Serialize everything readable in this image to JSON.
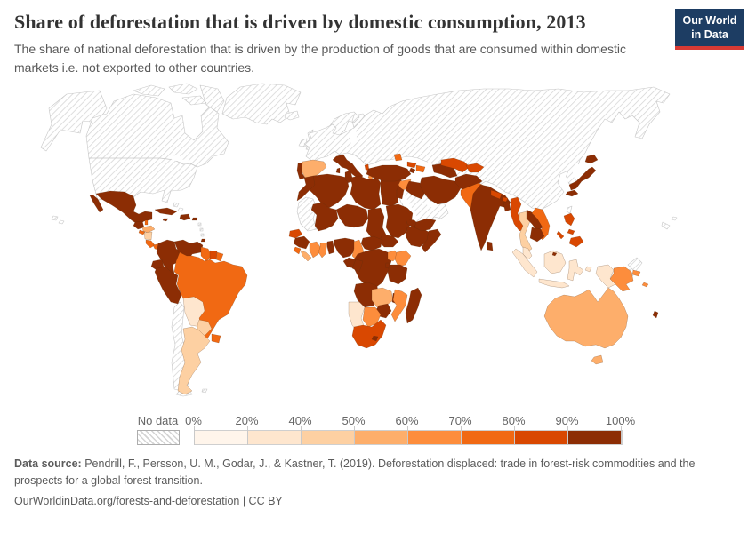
{
  "header": {
    "title": "Share of deforestation that is driven by domestic consumption, 2013",
    "subtitle": "The share of national deforestation that is driven by the production of goods that are consumed within domestic markets i.e. not exported to other countries.",
    "logo": {
      "line1": "Our World",
      "line2": "in Data",
      "bg_color": "#1d3d63",
      "accent_color": "#d73a34"
    }
  },
  "legend": {
    "no_data_label": "No data",
    "tick_labels": [
      "0%",
      "20%",
      "40%",
      "50%",
      "60%",
      "70%",
      "80%",
      "90%",
      "100%"
    ]
  },
  "footer": {
    "source_label": "Data source:",
    "source_text": " Pendrill, F., Persson, U. M., Godar, J., & Kastner, T. (2019). Deforestation displaced: trade in forest-risk commodities and the prospects for a global forest transition.",
    "link_text": "OurWorldinData.org/forests-and-deforestation | CC BY"
  },
  "chart_data": {
    "type": "choropleth_map",
    "title": "Share of deforestation that is driven by domestic consumption, 2013",
    "unit": "%",
    "legend_position": "bottom",
    "no_data_style": "diagonal-hatch",
    "bins": [
      {
        "key": "0-20",
        "color": "#fff5eb"
      },
      {
        "key": "20-40",
        "color": "#fee6ce"
      },
      {
        "key": "40-50",
        "color": "#fdd0a2"
      },
      {
        "key": "50-60",
        "color": "#fdae6b"
      },
      {
        "key": "60-70",
        "color": "#fd8d3c"
      },
      {
        "key": "70-80",
        "color": "#f16913"
      },
      {
        "key": "80-90",
        "color": "#d94801"
      },
      {
        "key": "90-100",
        "color": "#8c2d04"
      }
    ],
    "regions": {
      "alaska": "no-data",
      "canada-usa": "no-data",
      "canadian-arctic": "no-data",
      "greenland": "no-data",
      "iceland": "no-data",
      "united-kingdom": "no-data",
      "ireland": "no-data",
      "scandinavia": "no-data",
      "eurasia": "no-data",
      "taiwan": "no-data",
      "arabian-peninsula": "no-data",
      "mauritania-western-sahara": "no-data",
      "chile": "no-data",
      "bahamas": "no-data",
      "lesser-antilles": "no-data",
      "hawaii": "no-data",
      "new-zealand": "no-data",
      "new-caledonia": "no-data",
      "fiji": "no-data",
      "tierra-del-fuego": "no-data",
      "falklands": "no-data",
      "mexico": "90-100",
      "guatemala": "90-100",
      "belize": "70-80",
      "honduras": "50-60",
      "el-salvador": "70-80",
      "nicaragua": "40-50",
      "costa-rica": "70-80",
      "panama": "70-80",
      "cuba": "90-100",
      "jamaica": "90-100",
      "hispaniola": "90-100",
      "puerto-rico": "90-100",
      "trinidad": "90-100",
      "colombia": "90-100",
      "venezuela": "90-100",
      "guyana": "70-80",
      "suriname": "80-90",
      "french-guiana": "70-80",
      "ecuador": "90-100",
      "peru": "90-100",
      "brazil": "70-80",
      "bolivia": "20-40",
      "paraguay": "40-50",
      "argentina": "40-50",
      "uruguay": "70-80",
      "portugal": "90-100",
      "spain": "50-60",
      "italy": "90-100",
      "greece": "60-70",
      "albania": "80-90",
      "moldova": "70-80",
      "cyprus": "90-100",
      "morocco": "90-100",
      "algeria": "90-100",
      "tunisia": "90-100",
      "libya": "90-100",
      "egypt": "90-100",
      "mali": "90-100",
      "niger": "90-100",
      "chad": "90-100",
      "sudan": "90-100",
      "south-sudan": "90-100",
      "eritrea": "90-100",
      "ethiopia": "90-100",
      "somalia": "90-100",
      "senegal": "80-90",
      "guinea": "90-100",
      "sierra-leone": "70-80",
      "liberia": "50-60",
      "cote-divoire": "60-70",
      "ghana": "60-70",
      "togo-benin": "90-100",
      "nigeria": "90-100",
      "cameroon": "60-70",
      "central-african-republic": "90-100",
      "drc": "90-100",
      "gabon": "90-100",
      "congo": "90-100",
      "uganda": "60-70",
      "kenya": "60-70",
      "rwanda-burundi": "90-100",
      "tanzania": "90-100",
      "angola": "90-100",
      "zambia": "50-60",
      "malawi": "90-100",
      "mozambique": "60-70",
      "zimbabwe": "90-100",
      "botswana": "60-70",
      "namibia": "20-40",
      "south-africa": "80-90",
      "lesotho": "90-100",
      "madagascar": "90-100",
      "turkey": "90-100",
      "syria": "60-70",
      "israel-jordan": "90-100",
      "iraq": "90-100",
      "iran": "90-100",
      "georgia": "80-90",
      "azerbaijan": "70-80",
      "armenia": "90-100",
      "yemen": "90-100",
      "turkmenistan": "90-100",
      "uzbekistan": "80-90",
      "kyrgyzstan-tajikistan": "80-90",
      "afghanistan": "90-100",
      "pakistan": "70-80",
      "india": "90-100",
      "sri-lanka": "90-100",
      "nepal": "80-90",
      "bhutan": "80-90",
      "bangladesh": "90-100",
      "myanmar": "80-90",
      "thailand": "40-50",
      "laos": "90-100",
      "vietnam": "70-80",
      "cambodia": "90-100",
      "malaysia": "20-40",
      "indonesia": "20-40",
      "brunei": "90-100",
      "philippines": "80-90",
      "japan": "90-100",
      "papua-new-guinea": "60-70",
      "solomon-islands": "60-70",
      "vanuatu": "90-100",
      "australia": "50-60"
    }
  }
}
